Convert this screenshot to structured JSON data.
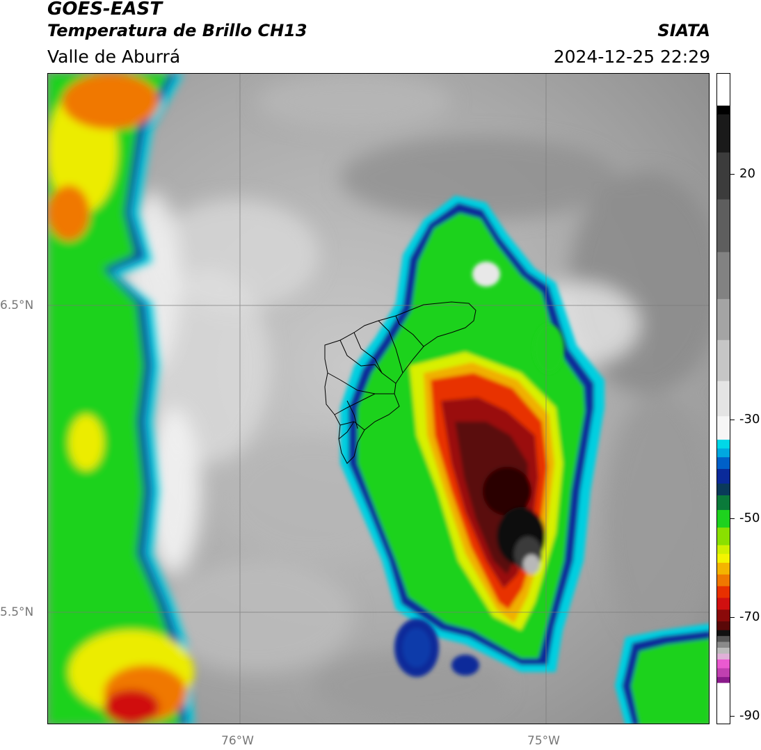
{
  "header": {
    "satellite": "GOES-EAST",
    "product": "Temperatura de Brillo CH13",
    "region": "Valle de Aburrá",
    "organization": "SIATA",
    "timestamp": "2024-12-25 22:29"
  },
  "axes": {
    "latitude_labels": [
      "6.5°N",
      "5.5°N"
    ],
    "longitude_labels": [
      "76°W",
      "75°W"
    ]
  },
  "colorbar": {
    "tick_labels": [
      "20",
      "-30",
      "-50",
      "-70",
      "-90"
    ],
    "range": [
      -92,
      36
    ],
    "colors": {
      "warm_top": "#000000",
      "gray": "#9a9a9a",
      "light": "#f2f2f2",
      "cyan": "#00d8e8",
      "blue": "#0a2a9a",
      "green": "#1ed21e",
      "yellow": "#f4f400",
      "orange": "#f07800",
      "red": "#d01010",
      "dark_red": "#5a0808",
      "purple": "#8a1a8a",
      "pink": "#ea5ad0"
    }
  }
}
